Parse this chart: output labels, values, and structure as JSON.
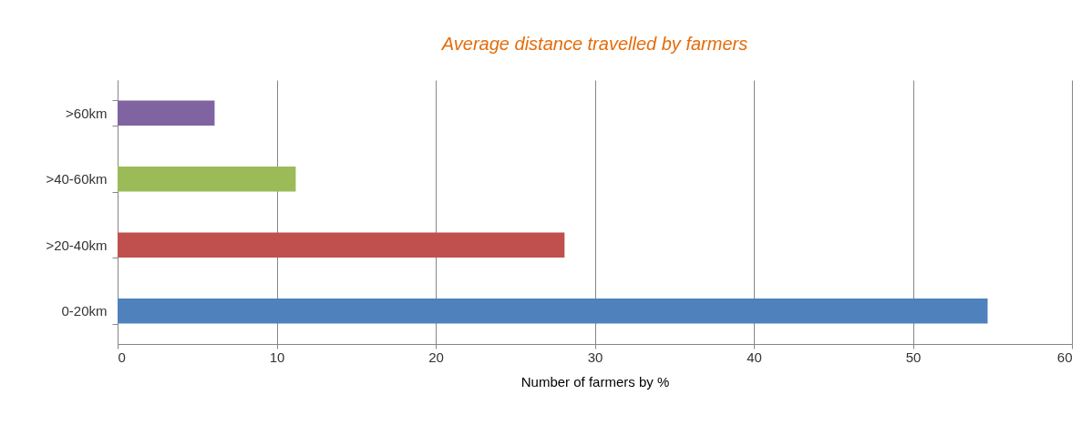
{
  "chart_data": {
    "type": "bar",
    "orientation": "horizontal",
    "title": "Average distance travelled by farmers",
    "xlabel": "Number of farmers by %",
    "categories": [
      ">60km",
      ">40-60km",
      ">20-40km",
      "0-20km"
    ],
    "values": [
      6.1,
      11.2,
      28.1,
      54.7
    ],
    "colors": [
      "#8064a2",
      "#9bbb59",
      "#c0504d",
      "#4f81bd"
    ],
    "xlim": [
      0,
      60
    ],
    "xticks": [
      0,
      10,
      20,
      30,
      40,
      50,
      60
    ],
    "grid": "x",
    "legend": false
  }
}
